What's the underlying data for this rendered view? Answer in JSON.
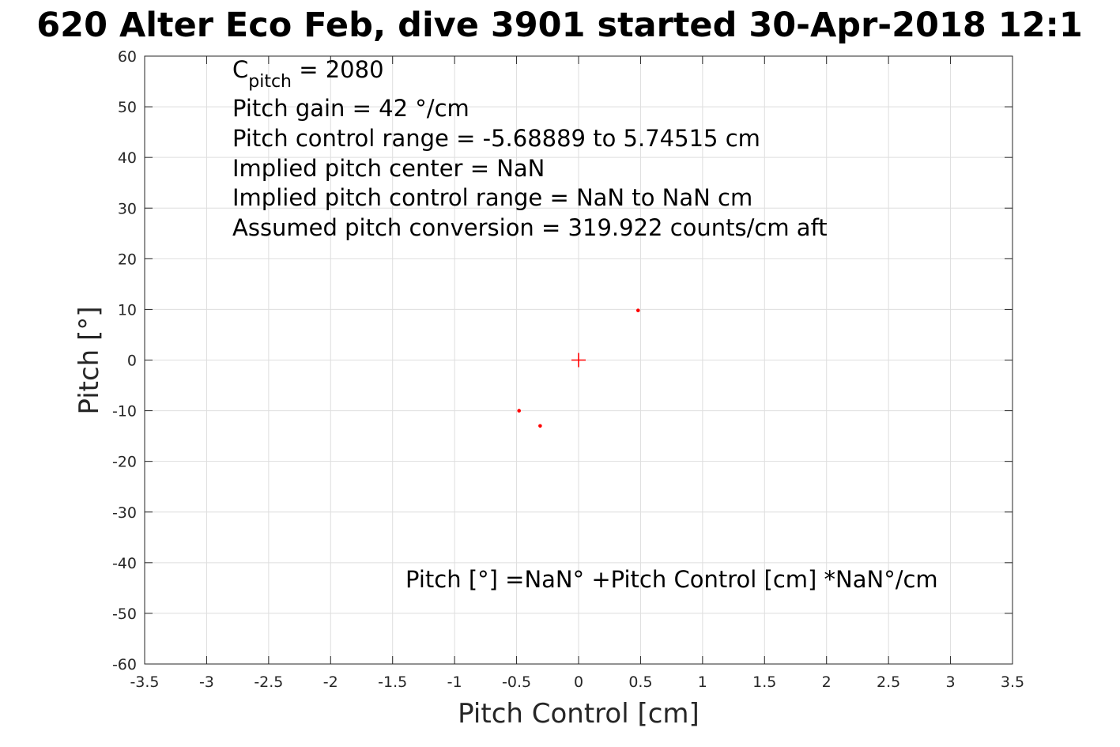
{
  "chart_data": {
    "type": "scatter",
    "title": "620 Alter Eco Feb, dive 3901 started 30-Apr-2018 12:1",
    "xlabel": "Pitch Control [cm]",
    "ylabel": "Pitch [°]",
    "xlim": [
      -3.5,
      3.5
    ],
    "ylim": [
      -60,
      60
    ],
    "xticks": [
      -3.5,
      -3,
      -2.5,
      -2,
      -1.5,
      -1,
      -0.5,
      0,
      0.5,
      1,
      1.5,
      2,
      2.5,
      3,
      3.5
    ],
    "yticks": [
      60,
      50,
      40,
      30,
      20,
      10,
      0,
      -10,
      -20,
      -30,
      -40,
      -50,
      -60
    ],
    "grid": true,
    "series": [
      {
        "marker": "dot",
        "color": "#ff0000",
        "x": [
          -0.48,
          -0.31,
          0.48
        ],
        "y": [
          -10,
          -13,
          9.8
        ]
      },
      {
        "marker": "plus",
        "color": "#ff0000",
        "x": [
          0
        ],
        "y": [
          0
        ]
      }
    ],
    "annotations": {
      "cpitch_base": "C",
      "cpitch_sub": "pitch",
      "cpitch_value": " = 2080",
      "lines": [
        "Pitch gain = 42 °/cm",
        "Pitch control range = -5.68889 to 5.74515 cm",
        "Implied pitch center = NaN",
        "Implied pitch control range = NaN to NaN cm",
        "Assumed pitch conversion = 319.922 counts/cm aft"
      ],
      "fit_equation": "Pitch [°] =NaN° +Pitch Control [cm] *NaN°/cm"
    }
  }
}
